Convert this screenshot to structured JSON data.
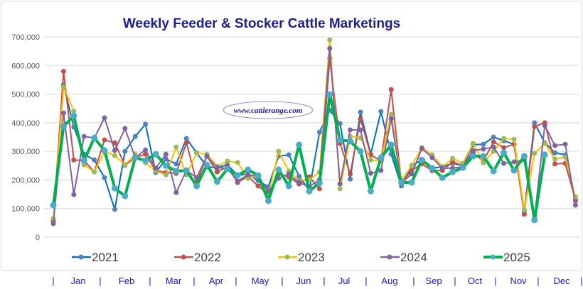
{
  "chart_data": {
    "type": "line",
    "title": "Weekly Feeder & Stocker Cattle Marketings",
    "watermark": "www.cattlerange.com",
    "xlabel": "",
    "ylabel": "",
    "ylim": [
      0,
      700000
    ],
    "yticks": [
      0,
      100000,
      200000,
      300000,
      400000,
      500000,
      600000,
      700000
    ],
    "ytick_labels": [
      "0",
      "100,000",
      "200,000",
      "300,000",
      "400,000",
      "500,000",
      "600,000",
      "700,000"
    ],
    "x_unit": "week of year (1-52)",
    "month_labels": [
      "Jan",
      "Feb",
      "Mar",
      "Apr",
      "May",
      "Jun",
      "Jul",
      "Aug",
      "Sep",
      "Oct",
      "Nov",
      "Dec"
    ],
    "month_separator": "|",
    "grid": true,
    "legend_position": "bottom",
    "series": [
      {
        "name": "2021",
        "line_color": "#0070C0",
        "marker_color": "#4F81BD",
        "values": [
          60000,
          533000,
          385000,
          290000,
          270000,
          208000,
          97000,
          300000,
          352000,
          395000,
          226000,
          273000,
          256000,
          345000,
          295000,
          246000,
          243000,
          253000,
          216000,
          221000,
          198000,
          176000,
          283000,
          288000,
          213000,
          164000,
          367000,
          444000,
          397000,
          203000,
          437000,
          290000,
          439000,
          290000,
          179000,
          250000,
          270000,
          241000,
          246000,
          258000,
          250000,
          323000,
          325000,
          350000,
          337000,
          325000,
          90000,
          400000,
          330000,
          295000,
          288000,
          127000
        ]
      },
      {
        "name": "2022",
        "line_color": "#C0504D",
        "marker_color": "#C0504D",
        "values": [
          55000,
          580000,
          270000,
          268000,
          228000,
          340000,
          330000,
          251000,
          278000,
          290000,
          233000,
          226000,
          223000,
          330000,
          191000,
          283000,
          228000,
          246000,
          191000,
          213000,
          179000,
          151000,
          221000,
          211000,
          186000,
          211000,
          169000,
          625000,
          328000,
          221000,
          414000,
          288000,
          266000,
          516000,
          191000,
          233000,
          256000,
          233000,
          233000,
          263000,
          250000,
          295000,
          266000,
          333000,
          313000,
          325000,
          80000,
          387000,
          400000,
          256000,
          258000,
          130000
        ]
      },
      {
        "name": "2023",
        "line_color": "#FFC000",
        "marker_color": "#9BBB59",
        "values": [
          65000,
          526000,
          440000,
          253000,
          228000,
          300000,
          285000,
          253000,
          290000,
          260000,
          231000,
          218000,
          315000,
          218000,
          295000,
          290000,
          248000,
          266000,
          261000,
          206000,
          218000,
          146000,
          300000,
          231000,
          198000,
          201000,
          228000,
          690000,
          169000,
          352000,
          347000,
          270000,
          266000,
          429000,
          198000,
          250000,
          313000,
          288000,
          246000,
          275000,
          258000,
          328000,
          260000,
          300000,
          345000,
          342000,
          95000,
          293000,
          328000,
          273000,
          280000,
          141000
        ]
      },
      {
        "name": "2024",
        "line_color": "#8064A2",
        "marker_color": "#8064A2",
        "values": [
          47000,
          434000,
          149000,
          352000,
          347000,
          417000,
          303000,
          380000,
          278000,
          305000,
          241000,
          290000,
          156000,
          233000,
          208000,
          283000,
          243000,
          241000,
          196000,
          218000,
          213000,
          159000,
          206000,
          221000,
          191000,
          176000,
          201000,
          660000,
          186000,
          375000,
          375000,
          223000,
          233000,
          414000,
          189000,
          221000,
          310000,
          278000,
          241000,
          241000,
          246000,
          303000,
          308000,
          315000,
          258000,
          263000,
          270000,
          67000,
          390000,
          320000,
          325000,
          112000
        ]
      },
      {
        "name": "2025",
        "line_color": "#00B050",
        "marker_color": "#4BACC6",
        "values": [
          112000,
          387000,
          424000,
          268000,
          347000,
          303000,
          171000,
          144000,
          278000,
          268000,
          290000,
          250000,
          231000,
          233000,
          179000,
          253000,
          194000,
          238000,
          216000,
          236000,
          216000,
          127000,
          236000,
          179000,
          323000,
          161000,
          189000,
          499000,
          340000,
          335000,
          300000,
          161000,
          278000,
          323000,
          191000,
          191000,
          270000,
          241000,
          208000,
          228000,
          243000,
          283000,
          283000,
          231000,
          295000,
          233000,
          283000,
          60000,
          288000,
          null,
          null,
          null
        ]
      }
    ]
  }
}
